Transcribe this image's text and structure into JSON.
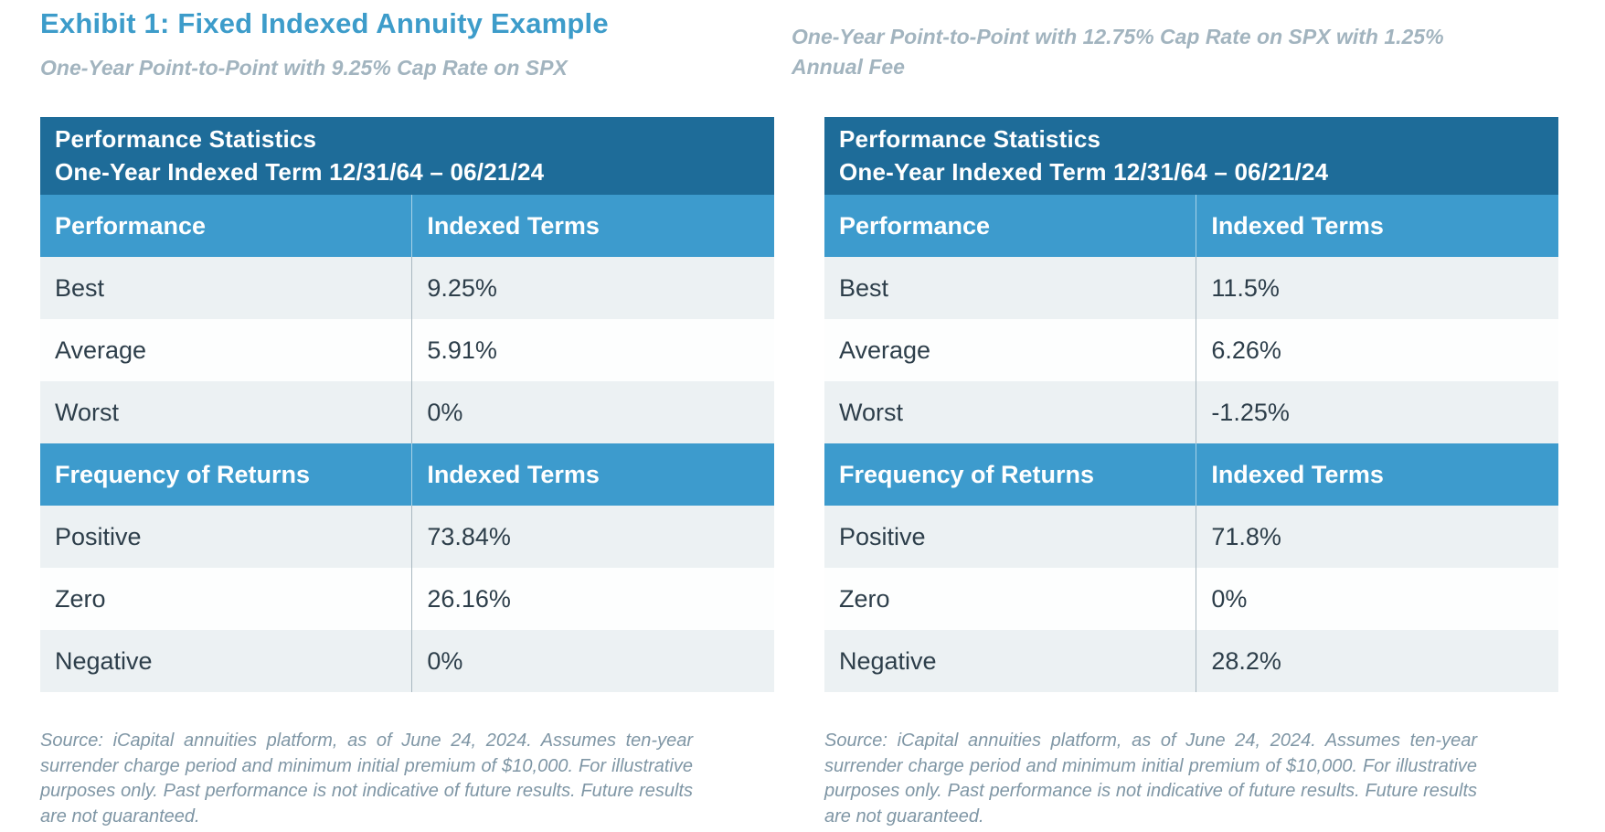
{
  "page": {
    "title": "Exhibit 1: Fixed Indexed Annuity Example",
    "colors": {
      "title_blue": "#3d9cca",
      "header_dark": "#1e6c99",
      "header_light": "#3d9bcd",
      "row_alt": "#ecf1f3",
      "row_plain": "#fdfefe",
      "divider_gray": "#a9b8c0",
      "text_dark": "#2d3e4a",
      "subtitle_gray": "#a2b4bf",
      "footnote_gray": "#7f96a5"
    }
  },
  "tables": [
    {
      "subtitle": "One-Year Point-to-Point with 9.25% Cap Rate on SPX",
      "header_line1": "Performance Statistics",
      "header_line2": "One-Year Indexed Term 12/31/64 – 06/21/24",
      "sections": [
        {
          "header": [
            "Performance",
            "Indexed Terms"
          ],
          "rows": [
            [
              "Best",
              "9.25%"
            ],
            [
              "Average",
              "5.91%"
            ],
            [
              "Worst",
              "0%"
            ]
          ]
        },
        {
          "header": [
            "Frequency of Returns",
            "Indexed Terms"
          ],
          "rows": [
            [
              "Positive",
              "73.84%"
            ],
            [
              "Zero",
              "26.16%"
            ],
            [
              "Negative",
              "0%"
            ]
          ]
        }
      ],
      "source": "Source: iCapital annuities platform, as of June 24, 2024. Assumes ten-year surrender charge period and minimum initial premium of $10,000. For illustrative purposes only. Past performance is not indicative of future results. Future results are not guaranteed."
    },
    {
      "subtitle": "One-Year Point-to-Point with 12.75% Cap Rate on SPX with 1.25% Annual Fee",
      "header_line1": "Performance Statistics",
      "header_line2": "One-Year Indexed Term 12/31/64 – 06/21/24",
      "sections": [
        {
          "header": [
            "Performance",
            "Indexed Terms"
          ],
          "rows": [
            [
              "Best",
              "11.5%"
            ],
            [
              "Average",
              "6.26%"
            ],
            [
              "Worst",
              "-1.25%"
            ]
          ]
        },
        {
          "header": [
            "Frequency of Returns",
            "Indexed Terms"
          ],
          "rows": [
            [
              "Positive",
              "71.8%"
            ],
            [
              "Zero",
              "0%"
            ],
            [
              "Negative",
              "28.2%"
            ]
          ]
        }
      ],
      "source": "Source: iCapital annuities platform, as of June 24, 2024. Assumes ten-year surrender charge period and minimum initial premium of $10,000. For illustrative purposes only. Past performance is not indicative of future results. Future results are not guaranteed."
    }
  ]
}
